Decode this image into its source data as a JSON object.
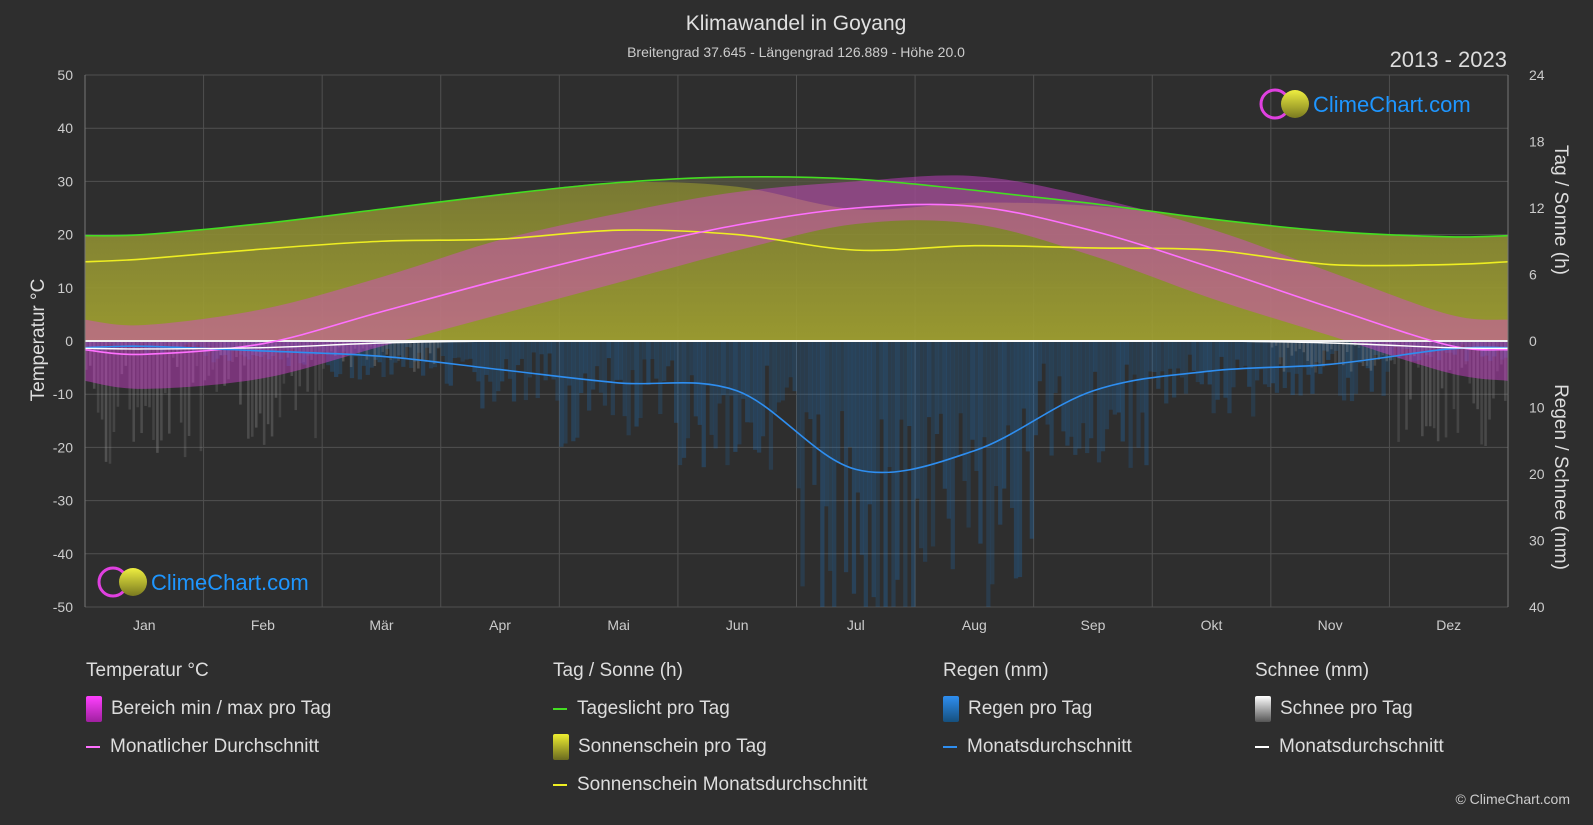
{
  "title": "Klimawandel in Goyang",
  "subtitle": "Breitengrad 37.645 - Längengrad 126.889 - Höhe 20.0",
  "years": "2013 - 2023",
  "logo_text": "ClimeChart.com",
  "copyright": "© ClimeChart.com",
  "colors": {
    "background": "#2e2e2e",
    "temp_range": "#e040e0",
    "temp_avg": "#ff70ff",
    "daylight": "#44dd22",
    "sunshine_area": "#b8b82a",
    "sunshine_avg": "#eeee22",
    "rain": "#1e78c8",
    "rain_avg": "#2e8ef0",
    "snow": "#9a9a9a",
    "snow_avg": "#ffffff",
    "logo": "#1e96ff"
  },
  "chart_data": {
    "type": "area",
    "categories": [
      "Jan",
      "Feb",
      "Mär",
      "Apr",
      "Mai",
      "Jun",
      "Jul",
      "Aug",
      "Sep",
      "Okt",
      "Nov",
      "Dez"
    ],
    "y_left": {
      "label": "Temperatur °C",
      "ticks": [
        "50",
        "40",
        "30",
        "20",
        "10",
        "0",
        "-10",
        "-20",
        "-30",
        "-40",
        "-50"
      ],
      "range": [
        -50,
        50
      ]
    },
    "y_right_top": {
      "label": "Tag / Sonne (h)",
      "ticks": [
        "24",
        "18",
        "12",
        "6",
        "0"
      ],
      "range": [
        0,
        24
      ]
    },
    "y_right_bottom": {
      "label": "Regen / Schnee (mm)",
      "ticks": [
        "0",
        "10",
        "20",
        "30",
        "40"
      ],
      "range": [
        0,
        40
      ]
    },
    "grid": true,
    "series": [
      {
        "name": "Monatlicher Durchschnitt",
        "unit": "°C",
        "values": [
          -2.5,
          -0.5,
          5.5,
          11.5,
          17.0,
          21.8,
          25.0,
          25.3,
          20.7,
          13.8,
          6.3,
          -0.8
        ]
      },
      {
        "name": "Tageslicht pro Tag",
        "unit": "h",
        "values": [
          9.6,
          10.6,
          11.9,
          13.2,
          14.3,
          14.8,
          14.6,
          13.6,
          12.4,
          11.0,
          9.9,
          9.4
        ]
      },
      {
        "name": "Sonnenschein Monatsdurchschnitt",
        "unit": "h",
        "values": [
          7.4,
          8.3,
          9.0,
          9.2,
          10.0,
          9.6,
          8.2,
          8.6,
          8.4,
          8.2,
          6.9,
          6.9
        ]
      },
      {
        "name": "Regen Monatsdurchschnitt",
        "unit": "mm",
        "values": [
          0.8,
          1.5,
          2.3,
          4.3,
          6.3,
          7.5,
          19.3,
          16.5,
          7.5,
          4.5,
          3.5,
          1.2
        ]
      },
      {
        "name": "Schnee Monatsdurchschnitt",
        "unit": "mm",
        "values": [
          1.2,
          1.0,
          0.3,
          0.0,
          0.0,
          0.0,
          0.0,
          0.0,
          0.0,
          0.0,
          0.3,
          1.0
        ]
      }
    ],
    "temp_band": {
      "max": [
        3,
        6,
        12,
        19,
        24,
        28,
        30,
        31,
        27,
        21,
        13,
        5
      ],
      "min": [
        -9,
        -7,
        -1,
        5,
        11,
        17,
        22,
        22,
        16,
        8,
        1,
        -6
      ]
    }
  },
  "legend": {
    "groups": [
      {
        "title": "Temperatur °C",
        "items": [
          "Bereich min / max pro Tag",
          "Monatlicher Durchschnitt"
        ]
      },
      {
        "title": "Tag / Sonne (h)",
        "items": [
          "Tageslicht pro Tag",
          "Sonnenschein pro Tag",
          "Sonnenschein Monatsdurchschnitt"
        ]
      },
      {
        "title": "Regen (mm)",
        "items": [
          "Regen pro Tag",
          "Monatsdurchschnitt"
        ]
      },
      {
        "title": "Schnee (mm)",
        "items": [
          "Schnee pro Tag",
          "Monatsdurchschnitt"
        ]
      }
    ]
  }
}
